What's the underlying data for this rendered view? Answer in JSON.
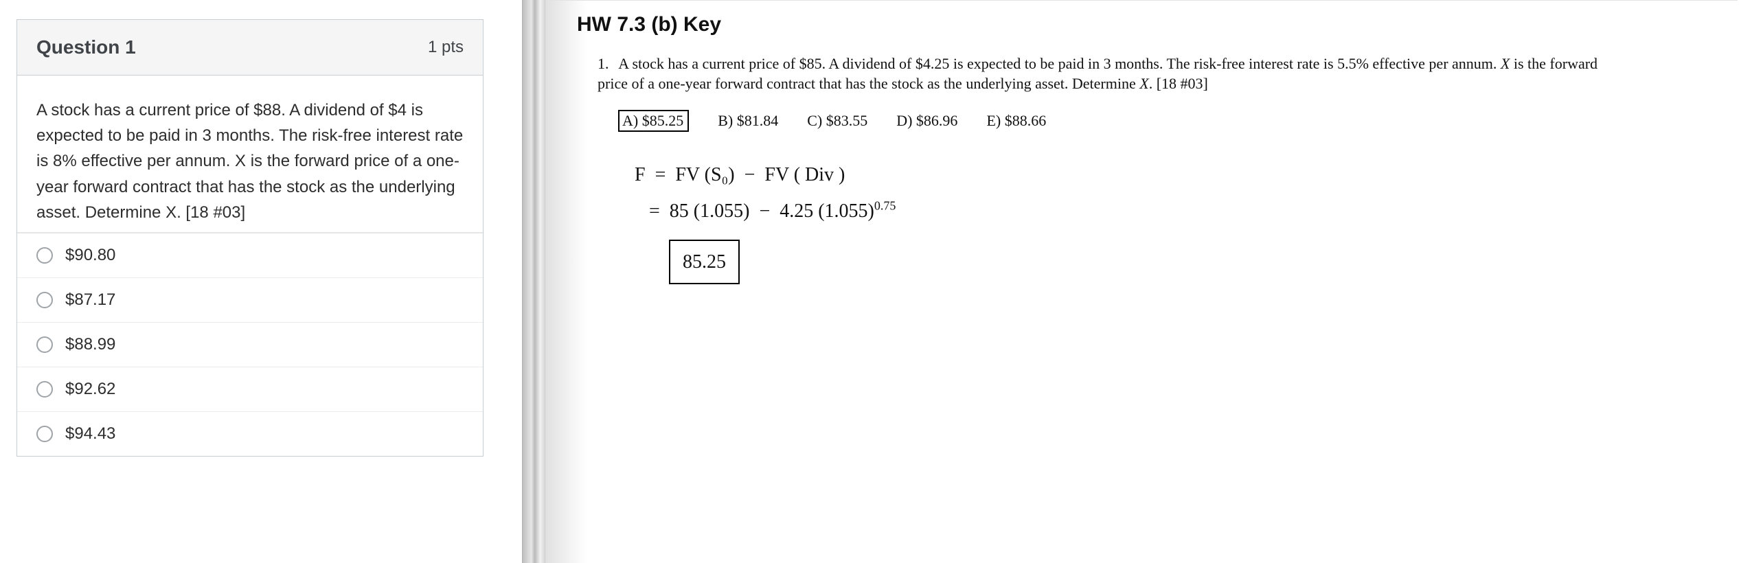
{
  "quiz": {
    "title": "Question 1",
    "points": "1 pts",
    "prompt": "A stock has a current price of $88. A dividend of $4 is expected to be paid in 3 months. The risk-free interest rate is 8% effective per annum. X is the forward price of a one-year forward contract that has the stock as the underlying asset. Determine X. [18 #03]",
    "options": [
      "$90.80",
      "$87.17",
      "$88.99",
      "$92.62",
      "$94.43"
    ]
  },
  "book": {
    "hw_title": "HW 7.3 (b) Key",
    "problem_number": "1.",
    "problem_text_a": "A stock has a current price of $85.   A dividend of $4.25 is expected to be paid in 3 months.   The risk-free interest rate is 5.5% effective per annum.   ",
    "problem_text_b": " is the forward price of a one-year forward contract that has the stock as the underlying asset.   Determine ",
    "problem_text_c": ".   [18 #03]",
    "choices": {
      "a": "A)  $85.25",
      "b": "B)  $81.84",
      "c": "C)  $83.55",
      "d": "D)  $86.96",
      "e": "E)  $88.66"
    },
    "work": {
      "line1": "F  =  FV (S₀)  −  FV ( Div )",
      "line2a": "   =  85 (1.055)  −  4.25 (1.055)",
      "line2_exp": "0.75",
      "answer": "85.25"
    }
  }
}
